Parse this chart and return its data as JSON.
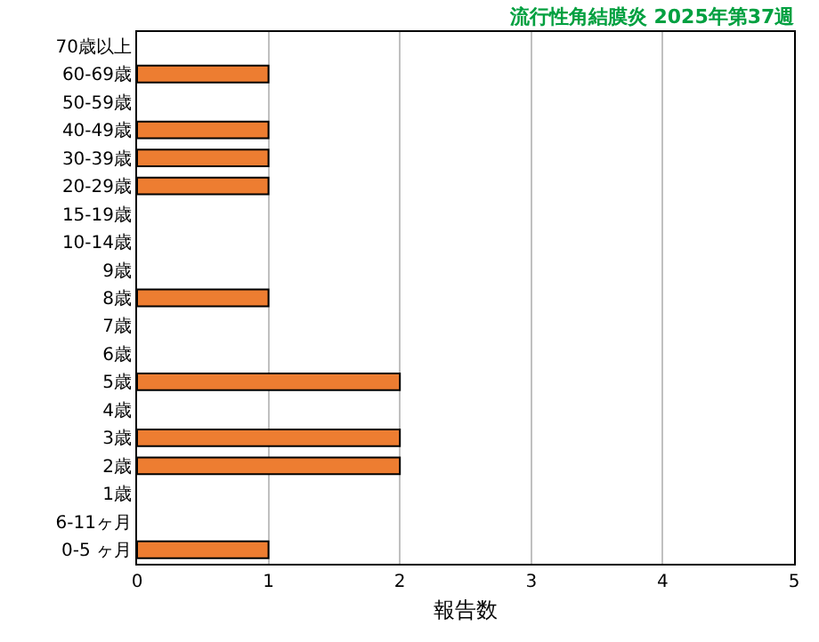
{
  "chart_data": {
    "type": "bar",
    "orientation": "horizontal",
    "title": "流行性角結膜炎 2025年第37週",
    "xlabel": "報告数",
    "categories": [
      "70歳以上",
      "60-69歳",
      "50-59歳",
      "40-49歳",
      "30-39歳",
      "20-29歳",
      "15-19歳",
      "10-14歳",
      "9歳",
      "8歳",
      "7歳",
      "6歳",
      "5歳",
      "4歳",
      "3歳",
      "2歳",
      "1歳",
      "6-11ヶ月",
      "0-5 ヶ月"
    ],
    "values": [
      0,
      1,
      0,
      1,
      1,
      1,
      0,
      0,
      0,
      1,
      0,
      0,
      2,
      0,
      2,
      2,
      0,
      0,
      1
    ],
    "color": "#ed7d31",
    "xlim": [
      0,
      5
    ],
    "xticks": [
      0,
      1,
      2,
      3,
      4,
      5
    ],
    "grid": "x"
  }
}
